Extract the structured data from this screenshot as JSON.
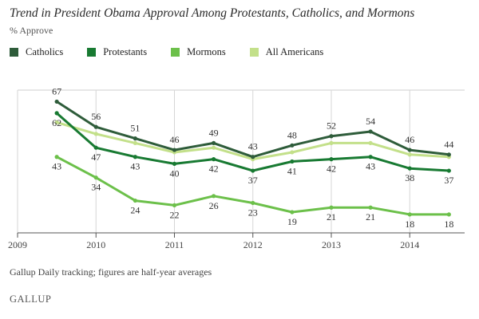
{
  "header": {
    "title": "Trend in President Obama Approval Among Protestants, Catholics, and Mormons",
    "subtitle": "% Approve"
  },
  "footer": {
    "note": "Gallup Daily tracking; figures are half-year averages",
    "brand": "GALLUP"
  },
  "chart_data": {
    "type": "line",
    "title": "Trend in President Obama Approval Among Protestants, Catholics, and Mormons",
    "ylabel": "% Approve",
    "legend_position": "top-left",
    "grid": "vertical",
    "x_tick_labels": [
      "2009",
      "2010",
      "2011",
      "2012",
      "2013",
      "2014"
    ],
    "x": [
      2009.5,
      2010.0,
      2010.5,
      2011.0,
      2011.5,
      2012.0,
      2012.5,
      2013.0,
      2013.5,
      2014.0,
      2014.5
    ],
    "xlim": [
      2009,
      2014.7
    ],
    "ylim": [
      10,
      72
    ],
    "series": [
      {
        "name": "Catholics",
        "color": "#2e5c3a",
        "values": [
          67,
          56,
          51,
          46,
          49,
          43,
          48,
          52,
          54,
          46,
          44
        ]
      },
      {
        "name": "Protestants",
        "color": "#187a32",
        "values": [
          62,
          47,
          43,
          40,
          42,
          37,
          41,
          42,
          43,
          38,
          37
        ]
      },
      {
        "name": "Mormons",
        "color": "#6cc04a",
        "values": [
          43,
          34,
          24,
          22,
          26,
          23,
          19,
          21,
          21,
          18,
          18
        ]
      },
      {
        "name": "All Americans",
        "color": "#c3e08a",
        "values": [
          58,
          53,
          49,
          45,
          47,
          42,
          45,
          49,
          49,
          44,
          43
        ]
      }
    ]
  }
}
